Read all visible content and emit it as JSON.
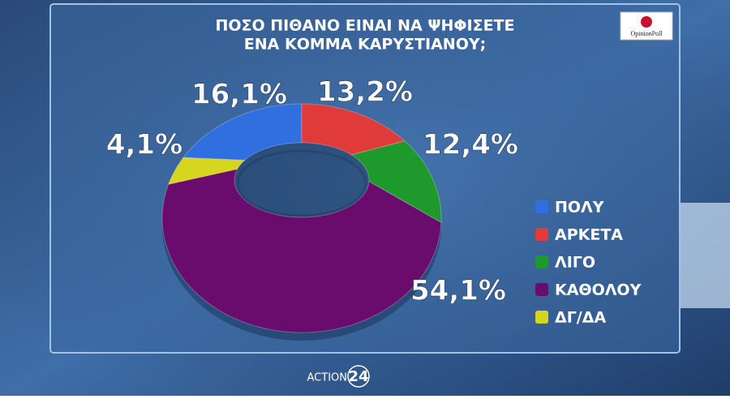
{
  "chart_data": {
    "type": "pie",
    "title": [
      "ΠΟΣΟ ΠΙΘΑΝΟ ΕΙΝΑΙ ΝΑ ΨΗΦΙΣΕΤΕ",
      "ΕΝΑ ΚΟΜΜΑ ΚΑΡΥΣΤΙΑΝΟΥ;"
    ],
    "categories": [
      "ΠΟΛΥ",
      "ΑΡΚΕΤΑ",
      "ΛΙΓΟ",
      "ΚΑΘΟΛΟΥ",
      "ΔΓ/ΔΑ"
    ],
    "values": [
      16.1,
      13.2,
      12.4,
      54.1,
      4.1
    ],
    "value_labels": [
      "16,1%",
      "13,2%",
      "12,4%",
      "54,1%",
      "4,1%"
    ],
    "colors": [
      "#2f6fe0",
      "#e03a3a",
      "#1d9a2b",
      "#6a0b6e",
      "#d6d61e"
    ],
    "donut": true,
    "legend": "right"
  },
  "source": "OpinionPoll",
  "channel": {
    "name": "ACTION",
    "number": "24"
  }
}
